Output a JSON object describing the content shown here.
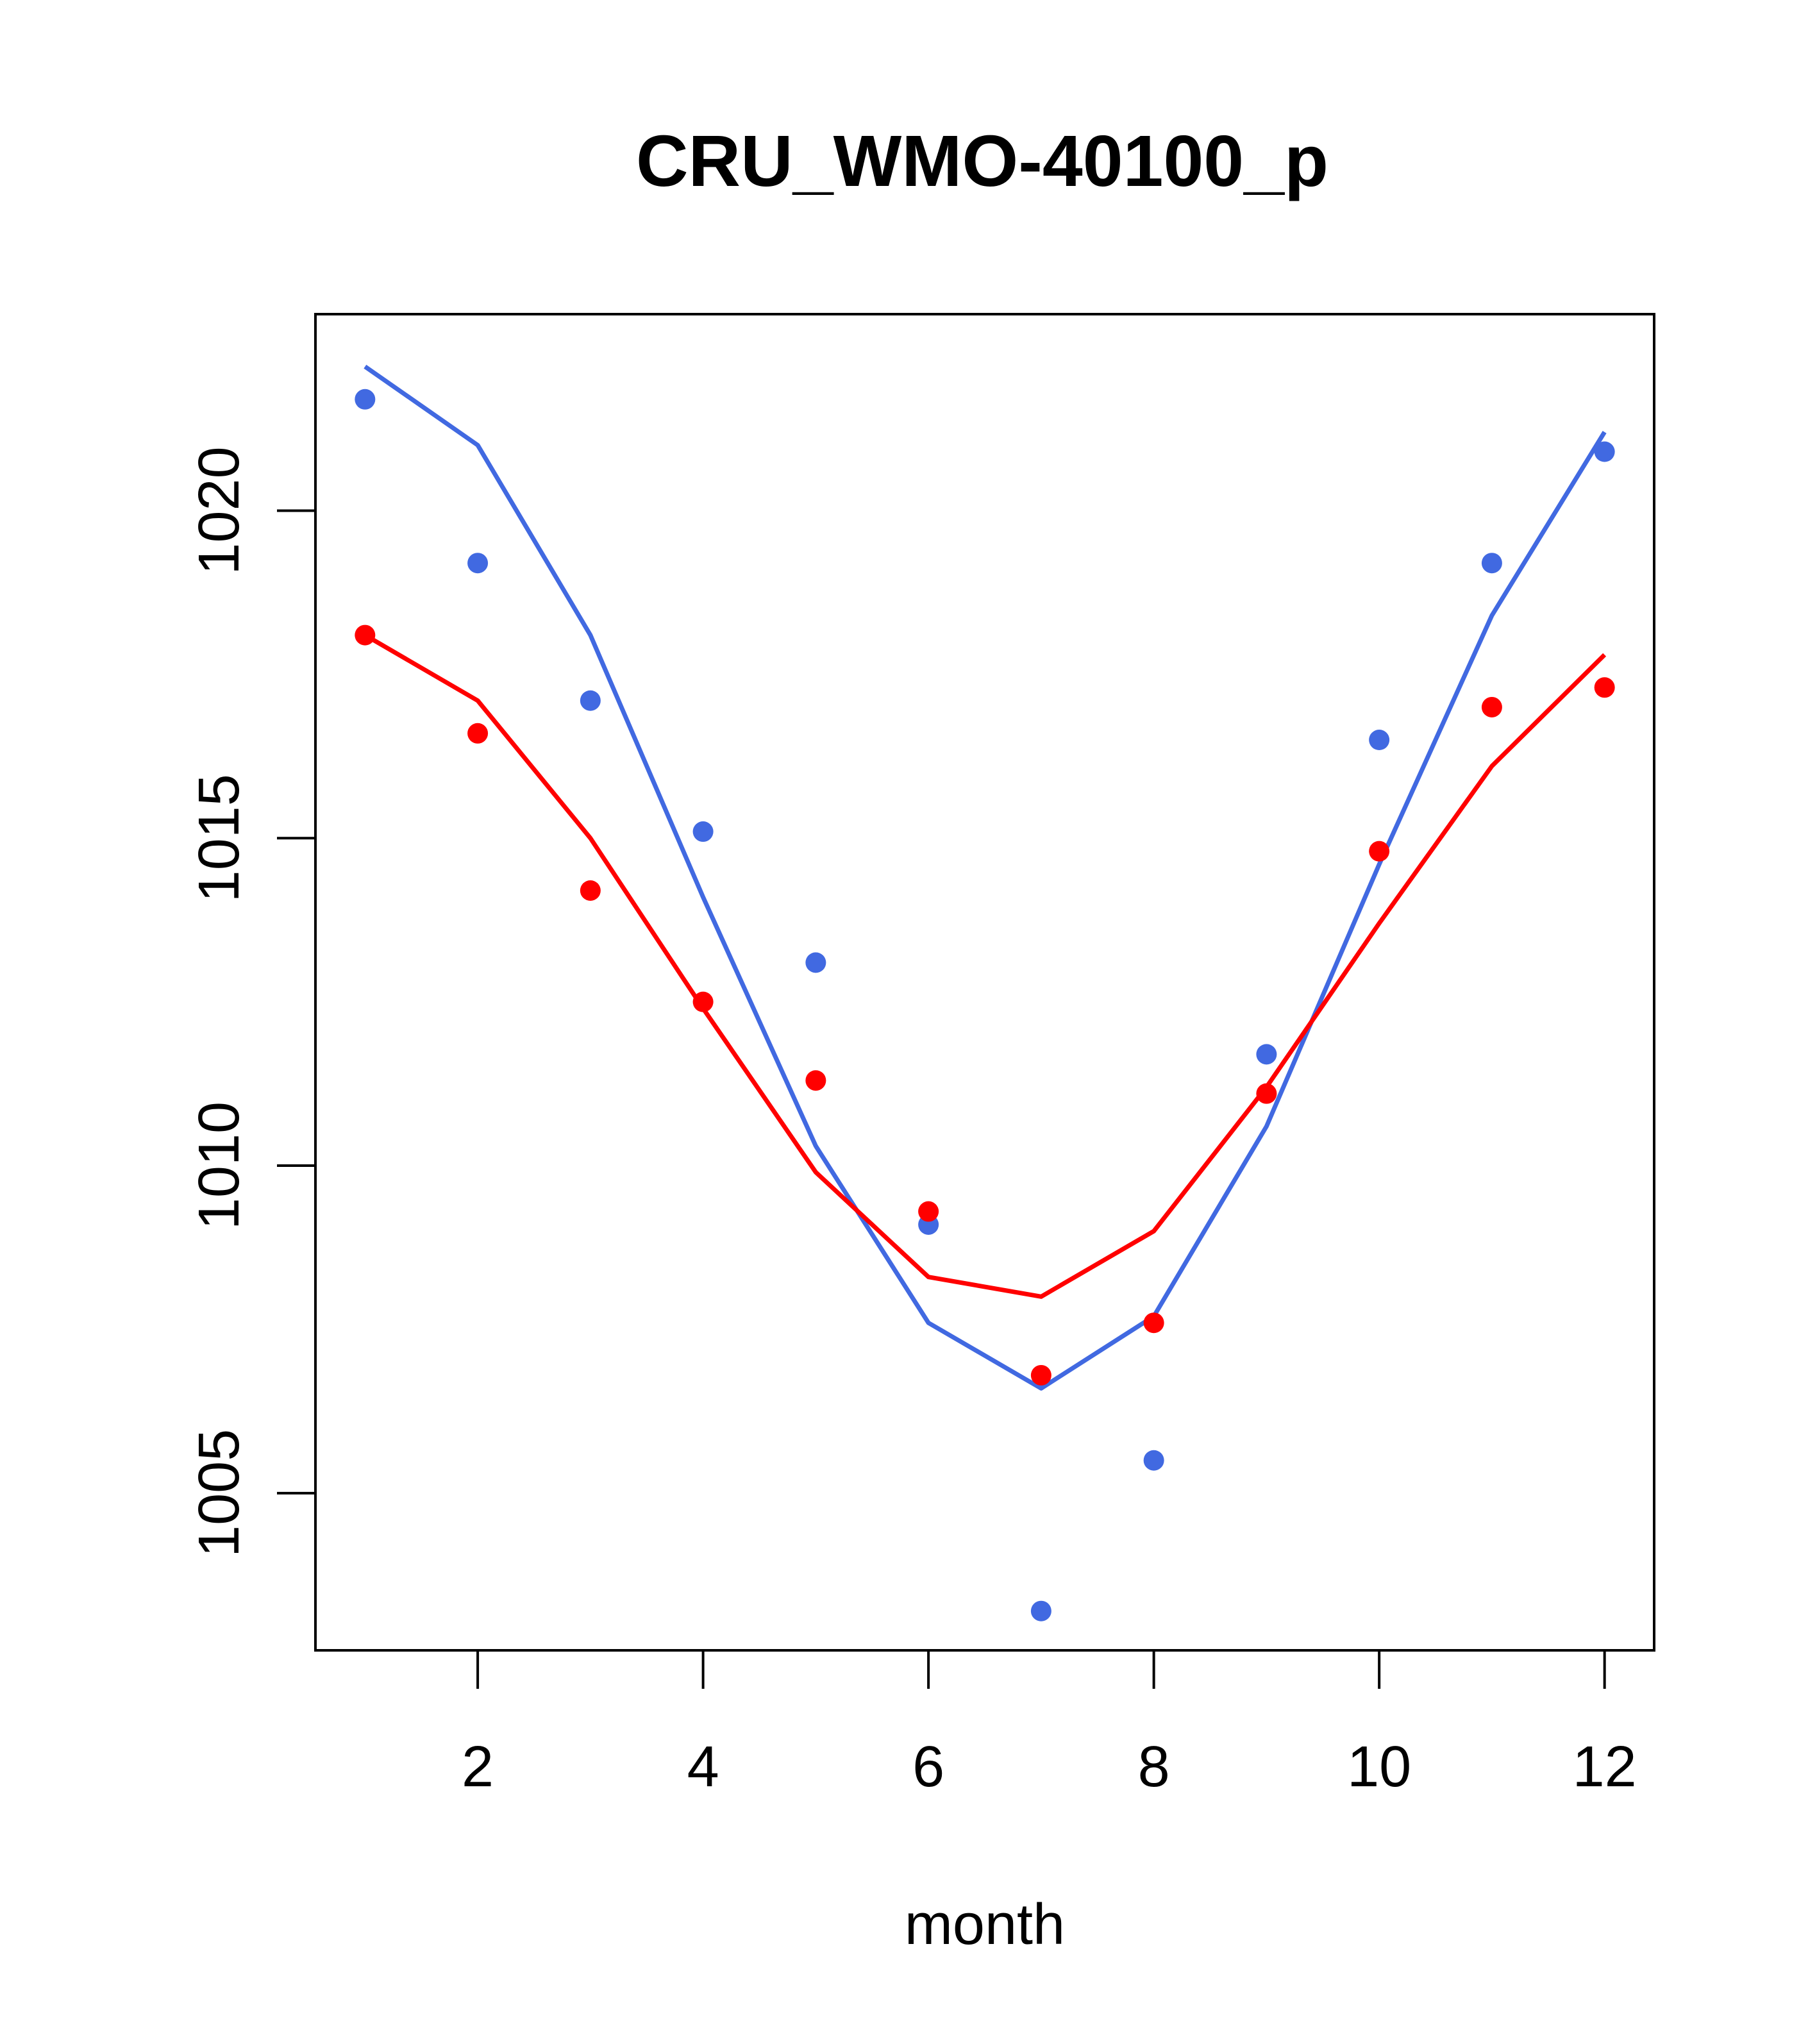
{
  "chart_data": {
    "type": "line",
    "title": "CRU_WMO-40100_p",
    "xlabel": "month",
    "ylabel": "",
    "xlim": [
      0.56,
      12.44
    ],
    "ylim": [
      1002.6,
      1023.0
    ],
    "x_ticks": [
      2,
      4,
      6,
      8,
      10,
      12
    ],
    "x_tick_labels": [
      "2",
      "4",
      "6",
      "8",
      "10",
      "12"
    ],
    "y_ticks": [
      1005,
      1010,
      1015,
      1020
    ],
    "y_tick_labels": [
      "1005",
      "1010",
      "1015",
      "1020"
    ],
    "grid": false,
    "x": [
      1,
      2,
      3,
      4,
      5,
      6,
      7,
      8,
      9,
      10,
      11,
      12
    ],
    "series": [
      {
        "name": "blue-line",
        "kind": "line",
        "color": "#4169e1",
        "values": [
          1022.2,
          1021.0,
          1018.1,
          1014.1,
          1010.3,
          1007.6,
          1006.6,
          1007.7,
          1010.6,
          1014.6,
          1018.4,
          1021.2
        ]
      },
      {
        "name": "red-line",
        "kind": "line",
        "color": "#ff0000",
        "values": [
          1018.1,
          1017.1,
          1015.0,
          1012.4,
          1009.9,
          1008.3,
          1008.0,
          1009.0,
          1011.2,
          1013.7,
          1016.1,
          1017.8
        ]
      },
      {
        "name": "blue-points",
        "kind": "points",
        "color": "#4169e1",
        "values": [
          1021.7,
          1019.2,
          1017.1,
          1015.1,
          1013.1,
          1009.1,
          1003.2,
          1005.5,
          1011.7,
          1016.5,
          1019.2,
          1020.9
        ]
      },
      {
        "name": "red-points",
        "kind": "points",
        "color": "#ff0000",
        "values": [
          1018.1,
          1016.6,
          1014.2,
          1012.5,
          1011.3,
          1009.3,
          1006.8,
          1007.6,
          1011.1,
          1014.8,
          1017.0,
          1017.3
        ]
      }
    ]
  }
}
